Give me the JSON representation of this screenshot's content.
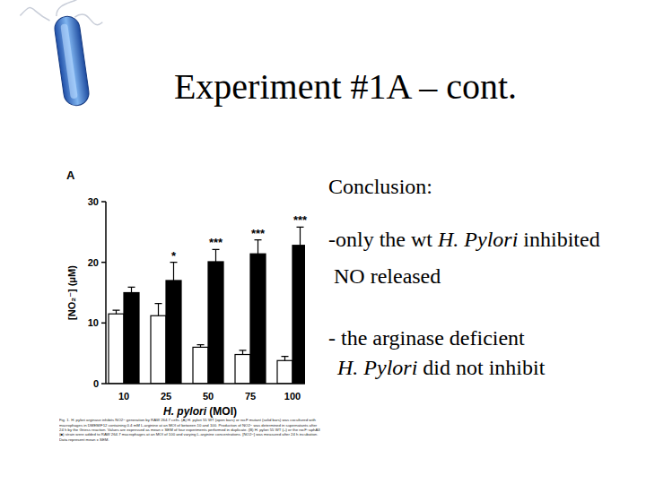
{
  "slide": {
    "title": "Experiment #1A – cont.",
    "conclusion_heading": "Conclusion:",
    "points": [
      [
        [
          {
            "text": "-only the wt "
          },
          {
            "text": "H. Pylori",
            "italic": true
          },
          {
            "text": " inhibited"
          }
        ],
        [
          {
            "text": "NO released"
          }
        ]
      ],
      [
        [
          {
            "text": "- the arginase deficient"
          }
        ],
        [
          {
            "text": "H. Pylori",
            "italic": true
          },
          {
            "text": " did not inhibit"
          }
        ]
      ]
    ],
    "caption": "Fig. 1. H. pylori arginase inhibits NO2− generation by RAW 264.7 cells. (A) H. pylori 55 WT (open bars) or rocF mutant (solid bars) was cocultured with macrophages in DMEM/F12 containing 0.4 mM L-arginine at an MOI of between 10 and 100. Production of NO2− was determined in supernatants after 24 h by the Griess reaction. Values are expressed as mean ± SEM of four experiments performed in duplicate. (B) H. pylori 55 WT (□) or the rocF::aphA3 (■) strain were added to RAW 264.7 macrophages at an MOI of 100 and varying L-arginine concentrations. [NO2−] was measured after 24 h incubation. Data represent mean ± SEM."
  },
  "chart_data": {
    "type": "bar",
    "title": "A",
    "x_label": "H. pylori (MOI)",
    "y_label": "[NO₂⁻] (μM)",
    "categories": [
      10,
      25,
      50,
      75,
      100
    ],
    "series": [
      {
        "color": "#ffffff",
        "values": [
          11.5,
          11.2,
          6.0,
          4.8,
          3.8
        ],
        "errors": [
          0.6,
          2.0,
          0.4,
          0.7,
          0.7
        ]
      },
      {
        "color": "#000000",
        "values": [
          15.0,
          17.0,
          20.1,
          21.4,
          22.8
        ],
        "errors": [
          0.9,
          3.0,
          2.0,
          2.3,
          3.0
        ],
        "significance": [
          null,
          "*",
          "***",
          "***",
          "***"
        ]
      }
    ],
    "ylim": [
      0,
      30
    ],
    "yticks": [
      0,
      10,
      20,
      30
    ],
    "grid": false
  }
}
